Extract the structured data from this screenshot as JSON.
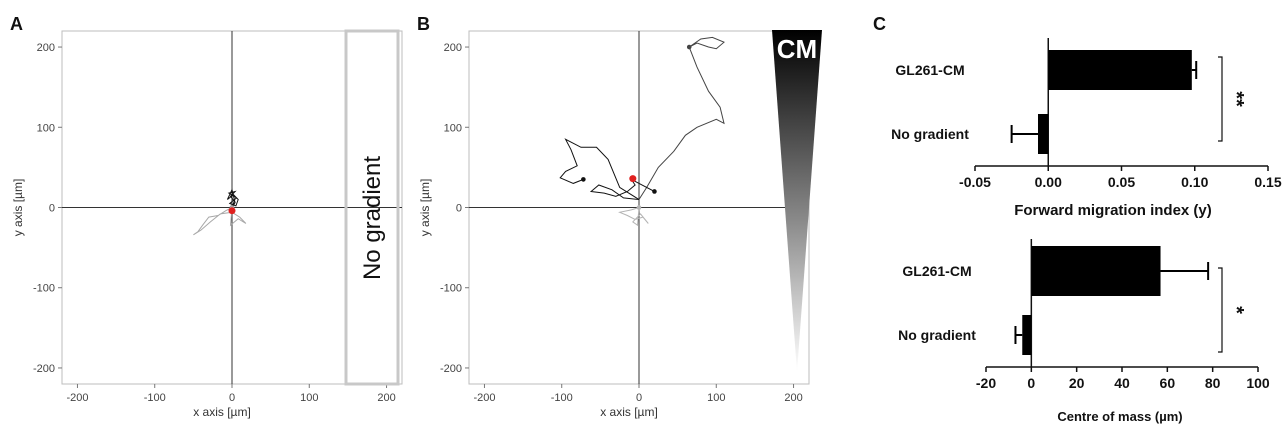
{
  "panels": {
    "a": {
      "letter": "A",
      "overlay": "No gradient"
    },
    "b": {
      "letter": "B",
      "overlay": "CM"
    },
    "c": {
      "letter": "C"
    }
  },
  "chart_data": [
    {
      "type": "scatter",
      "panel": "A",
      "xlabel": "x axis [µm]",
      "ylabel": "y axis [µm]",
      "xlim": [
        -220,
        220
      ],
      "ylim": [
        -220,
        220
      ],
      "xticks": [
        -200,
        -100,
        0,
        100,
        200
      ],
      "yticks": [
        200,
        100,
        0,
        -100,
        -200
      ],
      "series": [
        {
          "values": [
            [
              0,
              0
            ],
            [
              3,
              8
            ],
            [
              -2,
              14
            ],
            [
              4,
              20
            ],
            [
              -4,
              18
            ],
            [
              6,
              12
            ],
            [
              -3,
              5
            ],
            [
              5,
              2
            ],
            [
              8,
              10
            ],
            [
              2,
              16
            ],
            [
              -6,
              10
            ],
            [
              0,
              22
            ],
            [
              4,
              6
            ],
            [
              0,
              0
            ]
          ]
        },
        {
          "values": [
            [
              0,
              0
            ],
            [
              -8,
              -4
            ],
            [
              -18,
              -10
            ],
            [
              -30,
              -12
            ],
            [
              -38,
              -22
            ],
            [
              -44,
              -30
            ],
            [
              -50,
              -34
            ],
            [
              -40,
              -28
            ],
            [
              -28,
              -18
            ],
            [
              -15,
              -8
            ],
            [
              0,
              -6
            ],
            [
              10,
              -12
            ],
            [
              18,
              -20
            ],
            [
              8,
              -14
            ],
            [
              -2,
              -22
            ],
            [
              0,
              0
            ]
          ]
        }
      ],
      "markers": [
        [
          0,
          -4
        ]
      ]
    },
    {
      "type": "scatter",
      "panel": "B",
      "xlabel": "x axis [µm]",
      "ylabel": "y axis [µm]",
      "xlim": [
        -220,
        220
      ],
      "ylim": [
        -220,
        220
      ],
      "xticks": [
        -200,
        -100,
        0,
        100,
        200
      ],
      "yticks": [
        200,
        100,
        0,
        -100,
        -200
      ],
      "series": [
        {
          "values": [
            [
              0,
              10
            ],
            [
              10,
              25
            ],
            [
              25,
              50
            ],
            [
              45,
              70
            ],
            [
              60,
              90
            ],
            [
              75,
              100
            ],
            [
              100,
              110
            ],
            [
              110,
              105
            ],
            [
              105,
              125
            ],
            [
              90,
              145
            ],
            [
              75,
              175
            ],
            [
              65,
              200
            ],
            [
              80,
              210
            ],
            [
              95,
              212
            ],
            [
              110,
              206
            ],
            [
              100,
              198
            ],
            [
              90,
              200
            ],
            [
              75,
              205
            ],
            [
              65,
              200
            ]
          ]
        },
        {
          "values": [
            [
              0,
              10
            ],
            [
              -25,
              25
            ],
            [
              -40,
              60
            ],
            [
              -55,
              75
            ],
            [
              -75,
              75
            ],
            [
              -95,
              85
            ],
            [
              -88,
              72
            ],
            [
              -80,
              52
            ],
            [
              -95,
              45
            ],
            [
              -102,
              37
            ],
            [
              -85,
              30
            ],
            [
              -72,
              35
            ]
          ]
        },
        {
          "values": [
            [
              0,
              10
            ],
            [
              -20,
              12
            ],
            [
              -35,
              22
            ],
            [
              -52,
              28
            ],
            [
              -62,
              20
            ],
            [
              -45,
              18
            ],
            [
              -30,
              14
            ],
            [
              -15,
              20
            ],
            [
              -5,
              28
            ],
            [
              -10,
              35
            ],
            [
              10,
              25
            ],
            [
              20,
              20
            ]
          ]
        },
        {
          "values": [
            [
              0,
              0
            ],
            [
              -10,
              -3
            ],
            [
              -25,
              -6
            ],
            [
              -15,
              -10
            ],
            [
              -5,
              -15
            ],
            [
              5,
              -12
            ],
            [
              12,
              -20
            ],
            [
              2,
              -8
            ],
            [
              -8,
              -18
            ],
            [
              -2,
              -22
            ],
            [
              0,
              0
            ]
          ]
        }
      ],
      "markers": [
        [
          -8,
          36
        ]
      ]
    },
    {
      "type": "bar",
      "panel": "C",
      "orientation": "horizontal",
      "categories": [
        "GL261-CM",
        "No gradient"
      ],
      "values": [
        0.098,
        -0.007
      ],
      "errors": [
        0.003,
        0.018
      ],
      "xlabel": "Forward migration index (y)",
      "xlim": [
        -0.05,
        0.15
      ],
      "xticks": [
        -0.05,
        0.0,
        0.05,
        0.1,
        0.15
      ],
      "xtick_labels": [
        "-0.05",
        "0.00",
        "0.05",
        "0.10",
        "0.15"
      ],
      "significance": "**"
    },
    {
      "type": "bar",
      "panel": "C",
      "orientation": "horizontal",
      "categories": [
        "GL261-CM",
        "No gradient"
      ],
      "values": [
        57,
        -4
      ],
      "errors": [
        21,
        3
      ],
      "xlabel": "Centre of mass (µm)",
      "xlim": [
        -20,
        100
      ],
      "xticks": [
        -20,
        0,
        20,
        40,
        60,
        80,
        100
      ],
      "xtick_labels": [
        "-20",
        "0",
        "20",
        "40",
        "60",
        "80",
        "100"
      ],
      "significance": "*"
    }
  ]
}
